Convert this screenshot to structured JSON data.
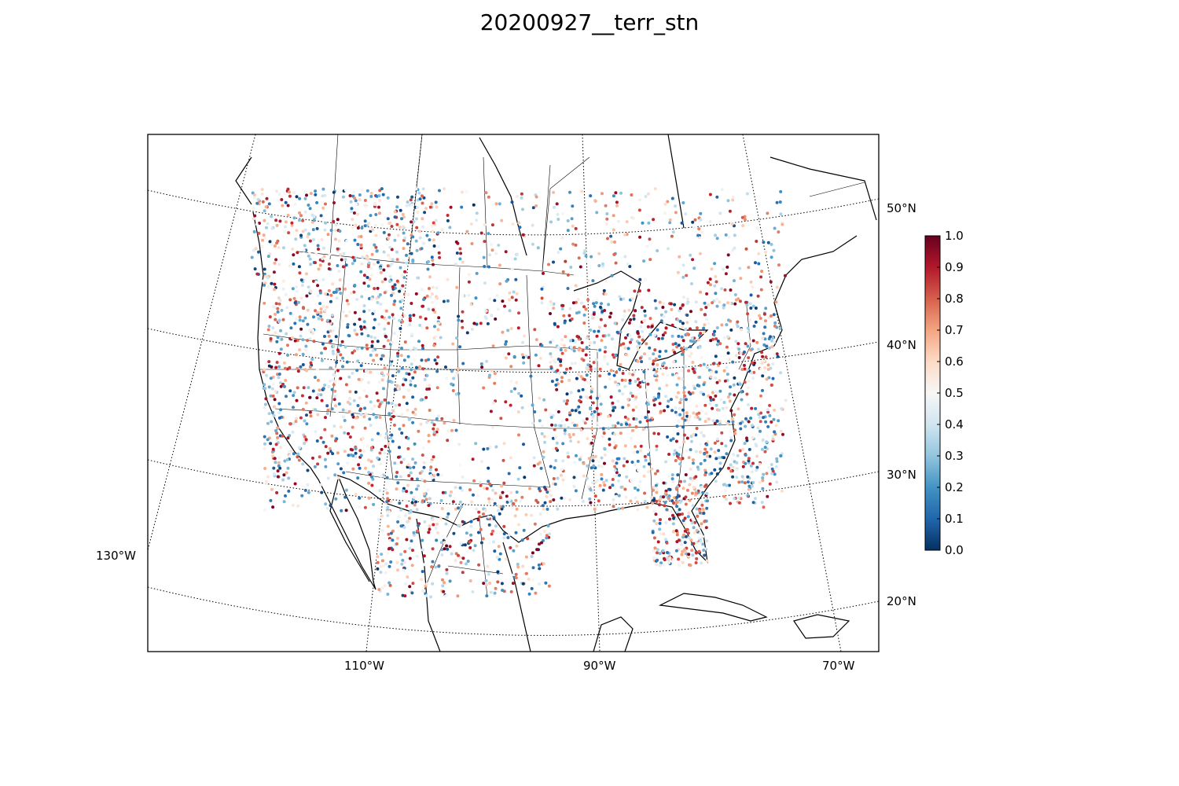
{
  "title": "20200927__terr_stn",
  "map": {
    "lat_labels": [
      "50°N",
      "40°N",
      "30°N",
      "20°N"
    ],
    "lon_labels": [
      "130°W",
      "110°W",
      "90°W",
      "70°W"
    ],
    "grid_style": "dotted",
    "projection": "lambert-conformal"
  },
  "colorbar": {
    "colormap": "RdBu_r",
    "min": 0.0,
    "max": 1.0,
    "ticks": [
      "0.0",
      "0.1",
      "0.2",
      "0.3",
      "0.4",
      "0.5",
      "0.6",
      "0.7",
      "0.8",
      "0.9",
      "1.0"
    ],
    "colors": [
      "#053061",
      "#2166ac",
      "#4393c3",
      "#92c5de",
      "#d1e5f0",
      "#f7f7f7",
      "#fddbc7",
      "#f4a582",
      "#d6604d",
      "#b2182b",
      "#67001f"
    ]
  },
  "stations": {
    "marker": "circle",
    "value_range": [
      0.0,
      1.0
    ]
  }
}
